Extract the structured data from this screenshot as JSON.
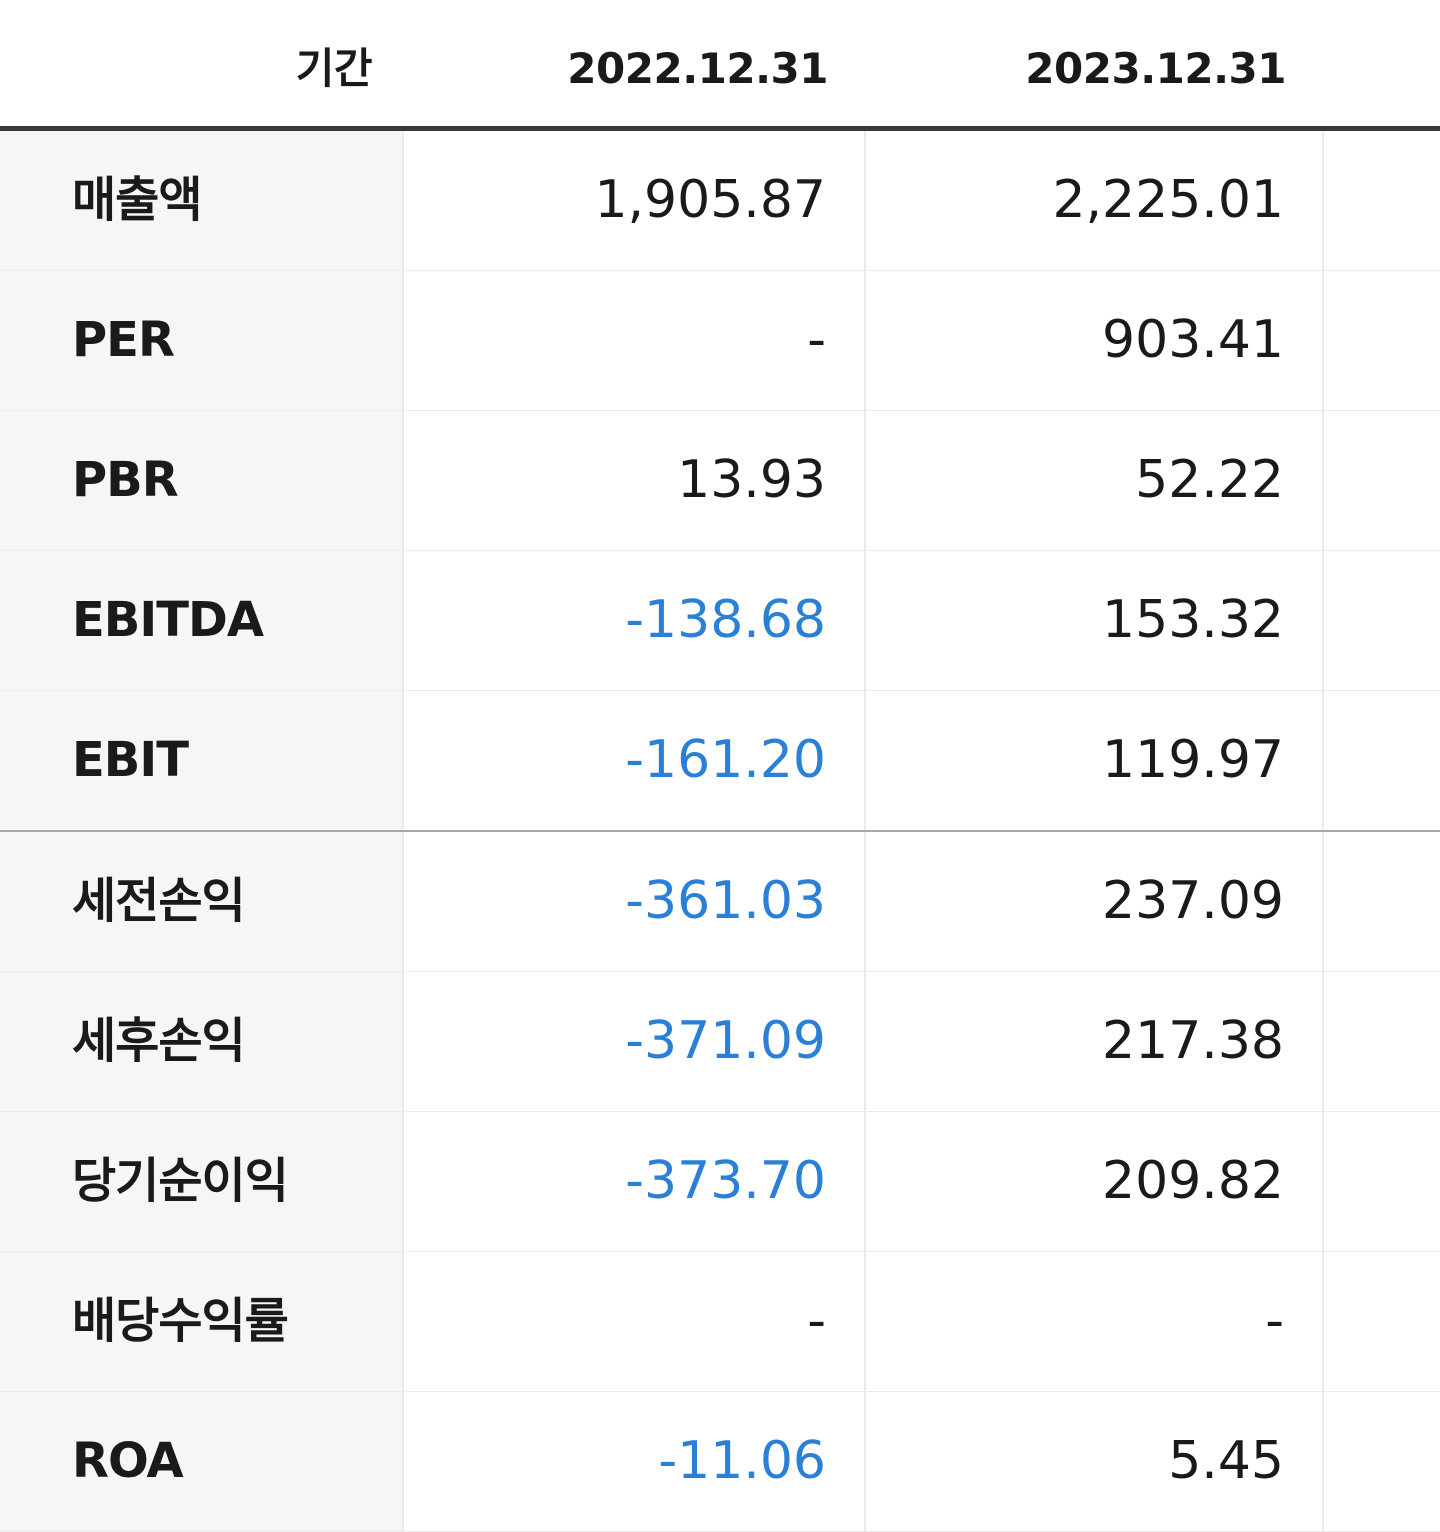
{
  "header": {
    "period_label": "기간",
    "col1": "2022.12.31",
    "col2": "2023.12.31"
  },
  "colors": {
    "negative_value": "#2a7fd6",
    "label_background": "#f6f6f6",
    "header_rule": "#3a3a3a"
  },
  "rows": [
    {
      "label": "매출액",
      "v1": "1,905.87",
      "v2": "2,225.01"
    },
    {
      "label": "PER",
      "v1": "-",
      "v2": "903.41"
    },
    {
      "label": "PBR",
      "v1": "13.93",
      "v2": "52.22"
    },
    {
      "label": "EBITDA",
      "v1": "-138.68",
      "v2": "153.32"
    },
    {
      "label": "EBIT",
      "v1": "-161.20",
      "v2": "119.97"
    },
    {
      "label": "세전손익",
      "v1": "-361.03",
      "v2": "237.09"
    },
    {
      "label": "세후손익",
      "v1": "-371.09",
      "v2": "217.38"
    },
    {
      "label": "당기순이익",
      "v1": "-373.70",
      "v2": "209.82"
    },
    {
      "label": "배당수익률",
      "v1": "-",
      "v2": "-"
    },
    {
      "label": "ROA",
      "v1": "-11.06",
      "v2": "5.45"
    }
  ]
}
